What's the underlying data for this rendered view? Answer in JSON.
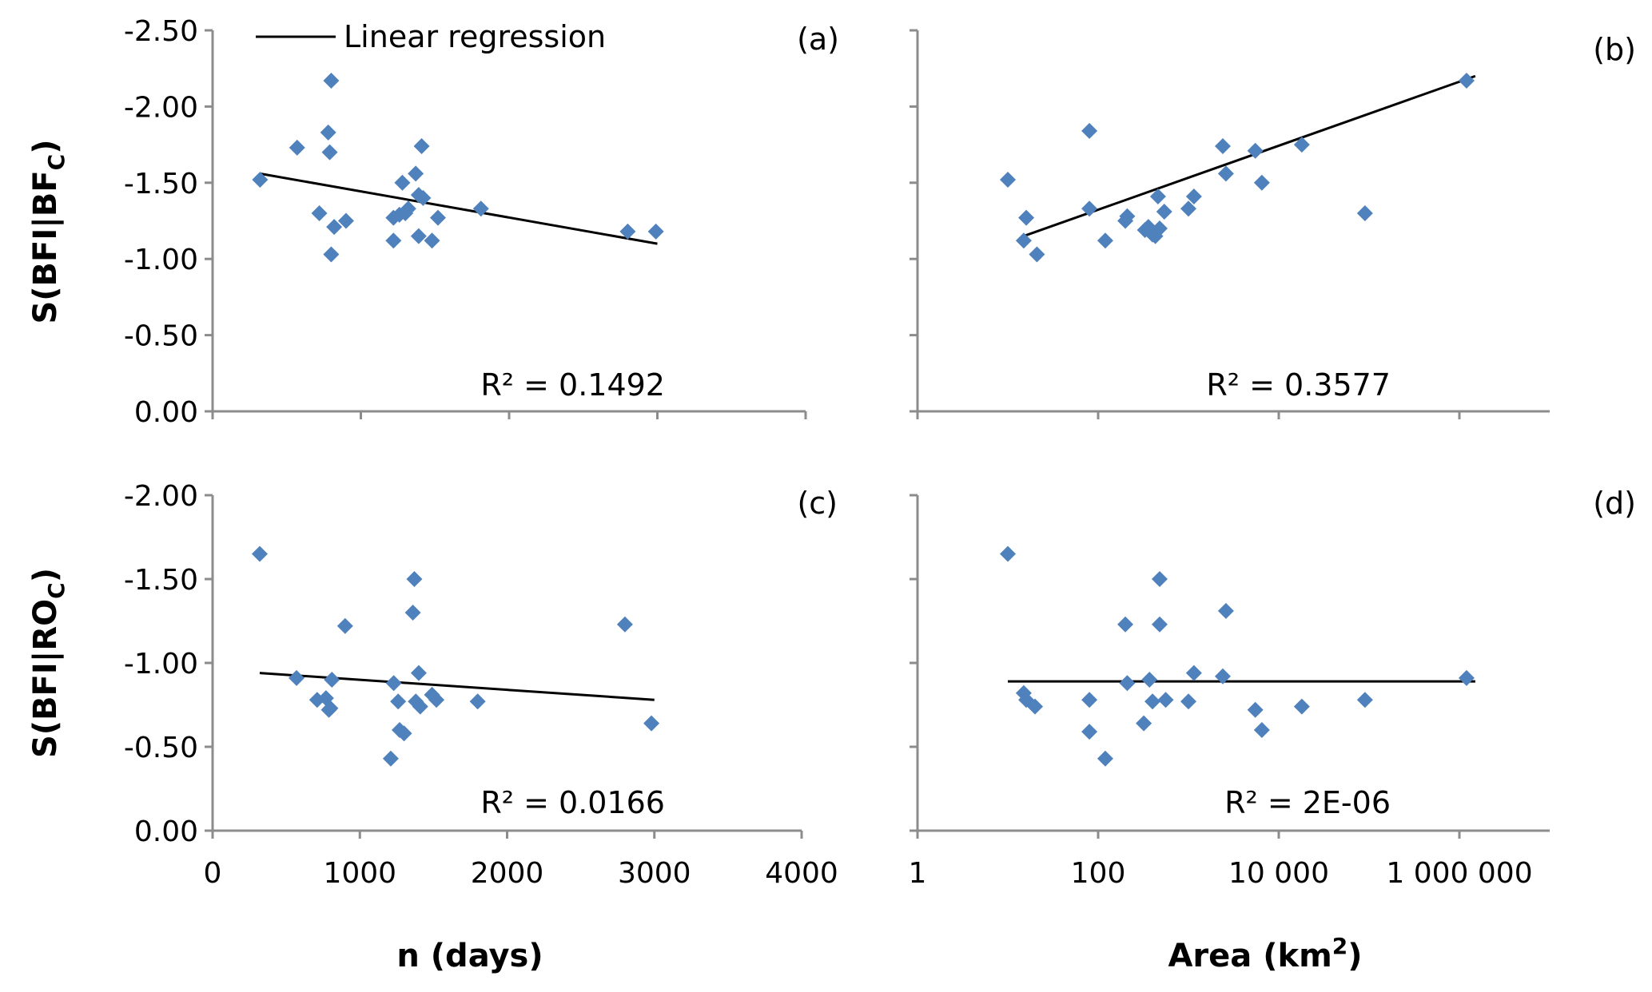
{
  "legend": {
    "line_label": "Linear regression"
  },
  "axis_titles": {
    "x_bottom_left": "n (days)",
    "x_bottom_right_prefix": "Area (km",
    "x_bottom_right_sup": "2",
    "x_bottom_right_suffix": ")",
    "y_top_prefix": "S(BFI|BF",
    "y_top_sub": "C",
    "y_top_suffix": ")",
    "y_bottom_prefix": "S(BFI|RO",
    "y_bottom_sub": "C",
    "y_bottom_suffix": ")"
  },
  "colors": {
    "points": "#4f81bd",
    "regression": "#000000",
    "axis": "#8c8c8c"
  },
  "chart_data": [
    {
      "id": "a",
      "type": "scatter",
      "panel_label": "(a)",
      "r2_label": "R² = 0.1492",
      "x_scale": "linear",
      "xlim": [
        0,
        4000
      ],
      "ylim": [
        0,
        -2.5
      ],
      "y_ticks": [
        "-2.50",
        "-2.00",
        "-1.50",
        "-1.00",
        "-0.50",
        "0.00"
      ],
      "y_tick_values": [
        -2.5,
        -2.0,
        -1.5,
        -1.0,
        -0.5,
        0.0
      ],
      "x_tick_values": [
        0,
        1000,
        2000,
        3000,
        4000
      ],
      "x_ticks": [],
      "points": [
        [
          320,
          -1.52
        ],
        [
          570,
          -1.73
        ],
        [
          720,
          -1.3
        ],
        [
          780,
          -1.83
        ],
        [
          790,
          -1.7
        ],
        [
          800,
          -2.17
        ],
        [
          800,
          -1.03
        ],
        [
          820,
          -1.21
        ],
        [
          900,
          -1.25
        ],
        [
          1220,
          -1.27
        ],
        [
          1220,
          -1.12
        ],
        [
          1260,
          -1.29
        ],
        [
          1280,
          -1.5
        ],
        [
          1300,
          -1.3
        ],
        [
          1320,
          -1.33
        ],
        [
          1370,
          -1.56
        ],
        [
          1390,
          -1.42
        ],
        [
          1390,
          -1.15
        ],
        [
          1410,
          -1.74
        ],
        [
          1420,
          -1.4
        ],
        [
          1480,
          -1.12
        ],
        [
          1520,
          -1.27
        ],
        [
          1810,
          -1.33
        ],
        [
          2800,
          -1.18
        ],
        [
          2990,
          -1.18
        ]
      ],
      "regression": [
        [
          320,
          -1.56
        ],
        [
          3000,
          -1.1
        ]
      ]
    },
    {
      "id": "b",
      "type": "scatter",
      "panel_label": "(b)",
      "r2_label": "R² = 0.3577",
      "x_scale": "log",
      "xlim": [
        1,
        10000000
      ],
      "ylim": [
        0,
        -2.5
      ],
      "y_ticks": [],
      "y_tick_values": [
        -2.5,
        -2.0,
        -1.5,
        -1.0,
        -0.5,
        0.0
      ],
      "x_tick_values": [
        1,
        100,
        10000,
        1000000
      ],
      "x_ticks": [],
      "points": [
        [
          10,
          -1.52
        ],
        [
          15,
          -1.12
        ],
        [
          16,
          -1.27
        ],
        [
          21,
          -1.03
        ],
        [
          80,
          -1.84
        ],
        [
          80,
          -1.33
        ],
        [
          120,
          -1.12
        ],
        [
          200,
          -1.25
        ],
        [
          210,
          -1.28
        ],
        [
          330,
          -1.19
        ],
        [
          360,
          -1.21
        ],
        [
          380,
          -1.18
        ],
        [
          400,
          -1.16
        ],
        [
          430,
          -1.15
        ],
        [
          460,
          -1.41
        ],
        [
          480,
          -1.2
        ],
        [
          540,
          -1.31
        ],
        [
          1000,
          -1.33
        ],
        [
          1150,
          -1.41
        ],
        [
          2400,
          -1.74
        ],
        [
          2600,
          -1.56
        ],
        [
          5500,
          -1.71
        ],
        [
          6500,
          -1.5
        ],
        [
          18000,
          -1.75
        ],
        [
          90000,
          -1.3
        ],
        [
          1200000,
          -2.17
        ]
      ],
      "regression": [
        [
          15,
          -1.15
        ],
        [
          1500000,
          -2.2
        ]
      ]
    },
    {
      "id": "c",
      "type": "scatter",
      "panel_label": "(c)",
      "r2_label": "R² = 0.0166",
      "x_scale": "linear",
      "xlim": [
        0,
        4000
      ],
      "ylim": [
        0,
        -2.0
      ],
      "y_ticks": [
        "-2.00",
        "-1.50",
        "-1.00",
        "-0.50",
        "0.00"
      ],
      "y_tick_values": [
        -2.0,
        -1.5,
        -1.0,
        -0.5,
        0.0
      ],
      "x_tick_values": [
        0,
        1000,
        2000,
        3000,
        4000
      ],
      "x_ticks": [
        "0",
        "1000",
        "2000",
        "3000",
        "4000"
      ],
      "points": [
        [
          320,
          -1.65
        ],
        [
          570,
          -0.91
        ],
        [
          710,
          -0.78
        ],
        [
          770,
          -0.79
        ],
        [
          790,
          -0.72
        ],
        [
          800,
          -0.73
        ],
        [
          810,
          -0.9
        ],
        [
          900,
          -1.22
        ],
        [
          1210,
          -0.43
        ],
        [
          1230,
          -0.88
        ],
        [
          1260,
          -0.77
        ],
        [
          1270,
          -0.6
        ],
        [
          1300,
          -0.58
        ],
        [
          1360,
          -1.3
        ],
        [
          1370,
          -1.5
        ],
        [
          1380,
          -0.77
        ],
        [
          1400,
          -0.94
        ],
        [
          1410,
          -0.74
        ],
        [
          1490,
          -0.81
        ],
        [
          1520,
          -0.78
        ],
        [
          1800,
          -0.77
        ],
        [
          2800,
          -1.23
        ],
        [
          2980,
          -0.64
        ]
      ],
      "regression": [
        [
          320,
          -0.94
        ],
        [
          3000,
          -0.78
        ]
      ]
    },
    {
      "id": "d",
      "type": "scatter",
      "panel_label": "(d)",
      "r2_label": "R² = 2E-06",
      "x_scale": "log",
      "xlim": [
        1,
        10000000
      ],
      "ylim": [
        0,
        -2.0
      ],
      "y_ticks": [],
      "y_tick_values": [
        -2.0,
        -1.5,
        -1.0,
        -0.5,
        0.0
      ],
      "x_tick_values": [
        1,
        100,
        10000,
        1000000
      ],
      "x_ticks": [
        "1",
        "100",
        "10 000",
        "1 000 000"
      ],
      "points": [
        [
          10,
          -1.65
        ],
        [
          15,
          -0.82
        ],
        [
          16,
          -0.78
        ],
        [
          20,
          -0.74
        ],
        [
          80,
          -0.78
        ],
        [
          80,
          -0.59
        ],
        [
          120,
          -0.43
        ],
        [
          200,
          -1.23
        ],
        [
          210,
          -0.88
        ],
        [
          320,
          -0.64
        ],
        [
          370,
          -0.9
        ],
        [
          400,
          -0.77
        ],
        [
          480,
          -1.23
        ],
        [
          480,
          -1.5
        ],
        [
          560,
          -0.78
        ],
        [
          1000,
          -0.77
        ],
        [
          1150,
          -0.94
        ],
        [
          2400,
          -0.92
        ],
        [
          2600,
          -1.31
        ],
        [
          5500,
          -0.72
        ],
        [
          6500,
          -0.6
        ],
        [
          18000,
          -0.74
        ],
        [
          90000,
          -0.78
        ],
        [
          1200000,
          -0.91
        ]
      ],
      "regression": [
        [
          10,
          -0.89
        ],
        [
          1500000,
          -0.89
        ]
      ]
    }
  ]
}
